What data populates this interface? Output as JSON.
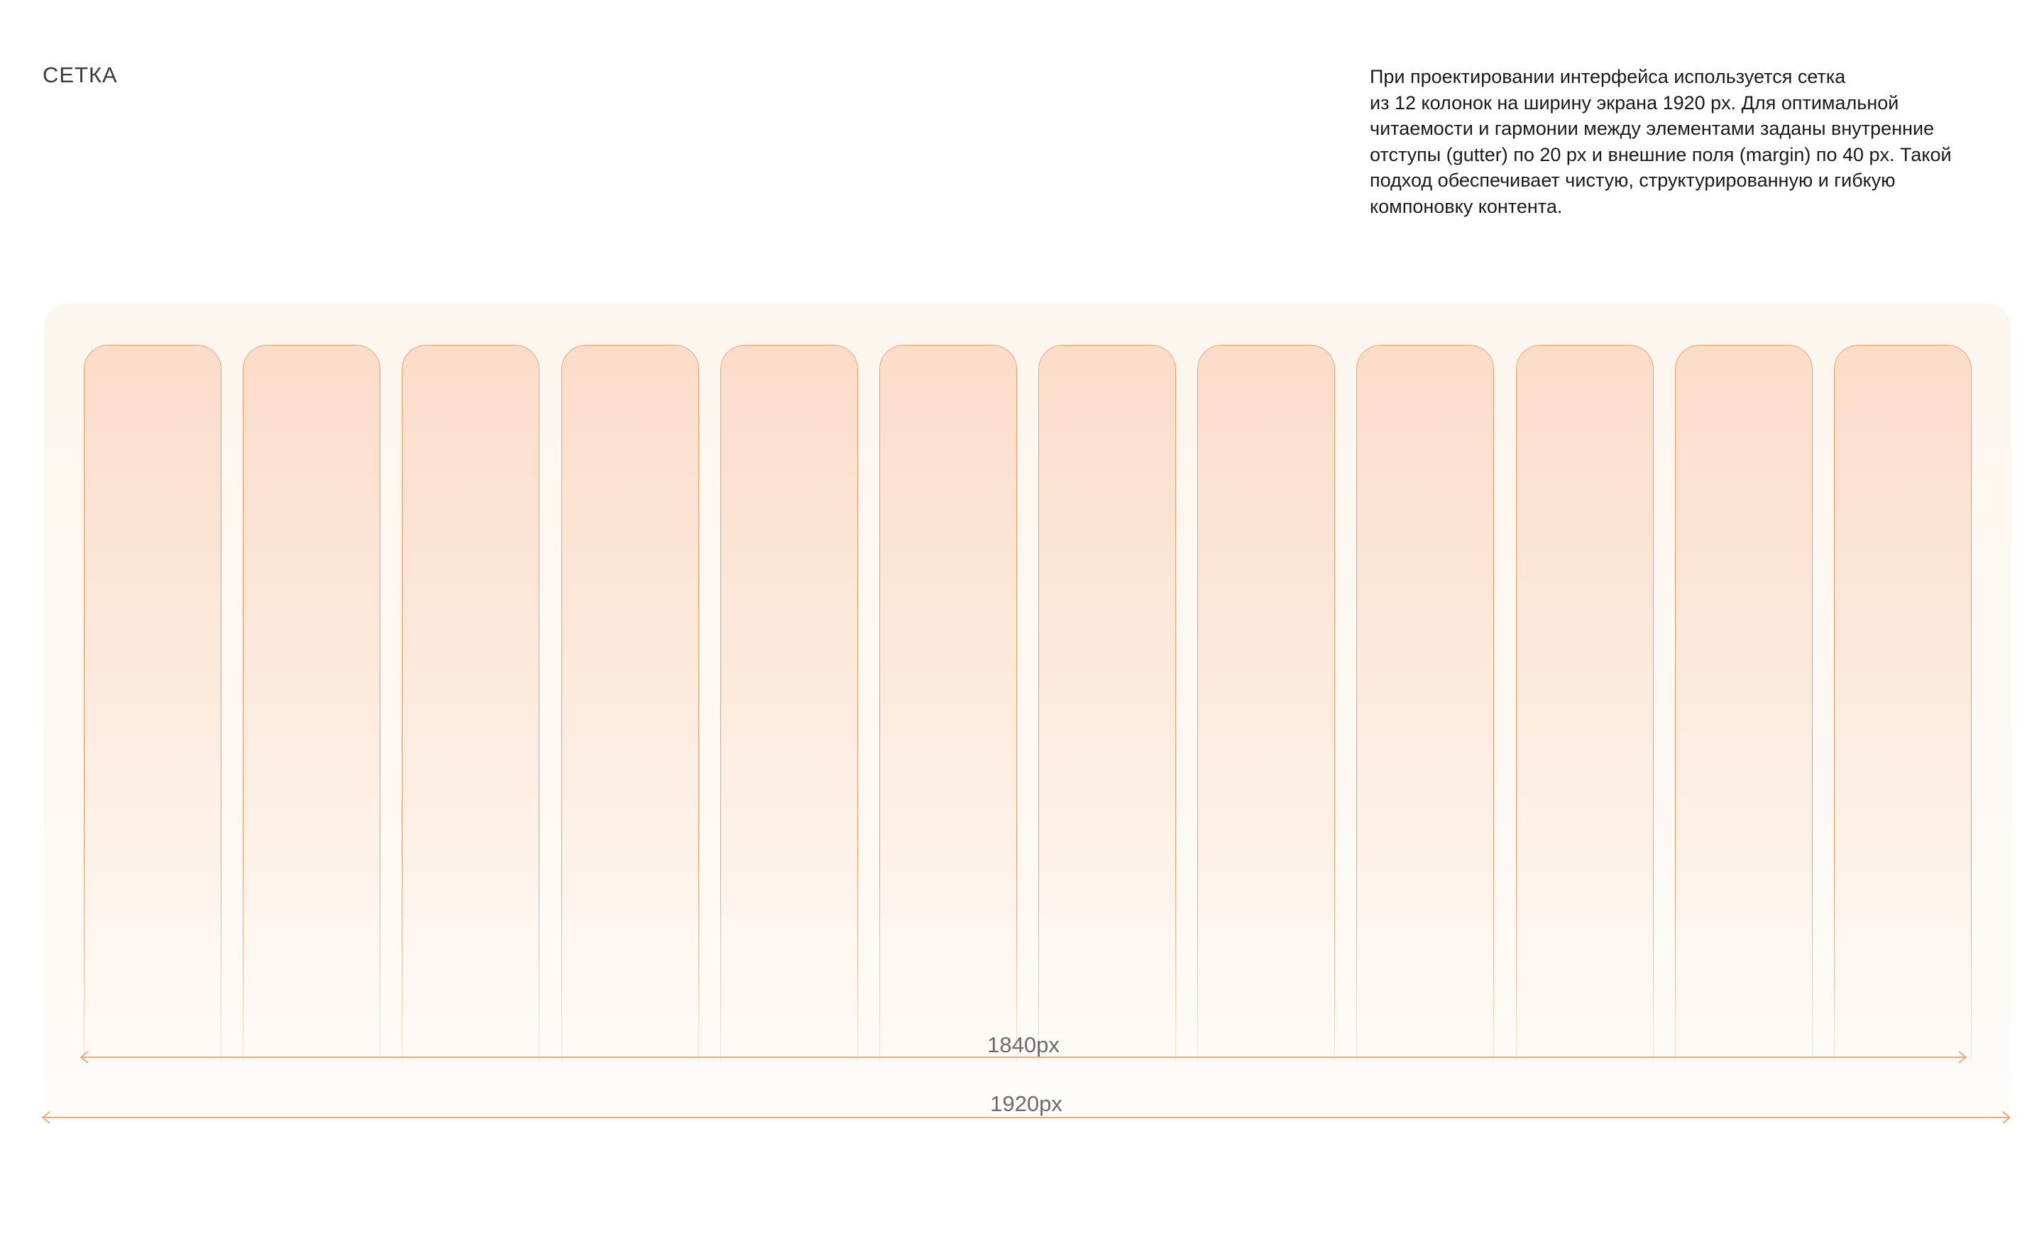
{
  "section": {
    "title": "СЕТКА"
  },
  "description": {
    "lines": [
      "При проектировании интерфейса используется сетка",
      "из 12 колонок на ширину экрана 1920 px. Для оптимальной",
      "читаемости и гармонии между элементами заданы внутренние",
      "отступы (gutter) по 20 px и внешние поля (margin) по 40 px. Такой",
      "подход обеспечивает чистую, структурированную и гибкую",
      "компоновку контента."
    ]
  },
  "grid": {
    "column_count": 12,
    "column_color": "#eaa06c",
    "column_fill_top": "#fbdcc9",
    "frame_fill": "#fdf6ee"
  },
  "measurements": {
    "content_width_label": "1840px",
    "screen_width_label": "1920px",
    "arrow_color": "#eeaa7a"
  }
}
